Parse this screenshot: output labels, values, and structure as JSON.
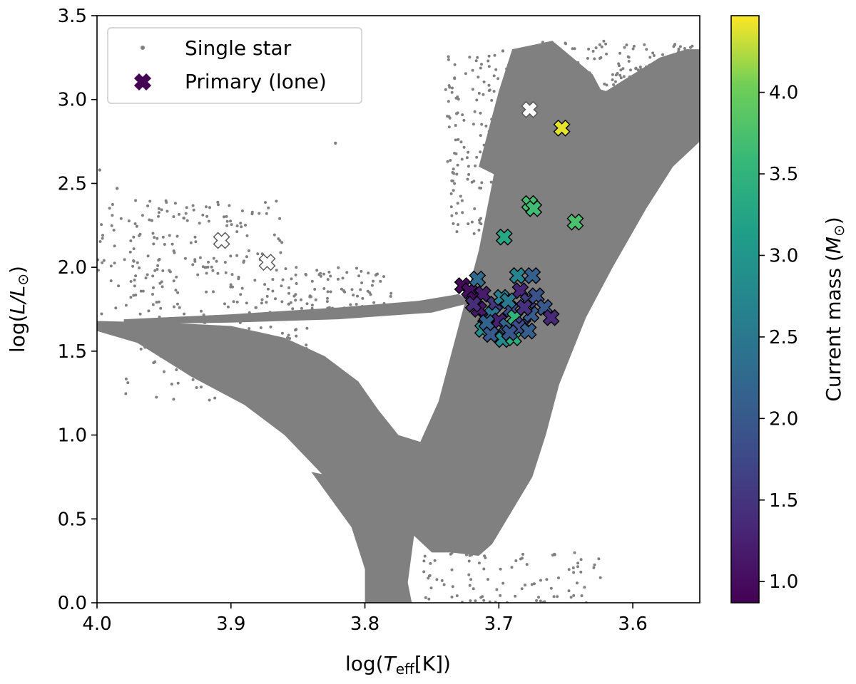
{
  "chart_data": {
    "type": "scatter",
    "title": "",
    "xlabel_prefix": "log(",
    "xlabel_var": "T",
    "xlabel_sub": "eff",
    "xlabel_suffix": "[K])",
    "ylabel_prefix": "log(",
    "ylabel_var": "L/L",
    "ylabel_sub": "⊙",
    "ylabel_suffix": ")",
    "xlim": [
      4.0,
      3.55
    ],
    "ylim": [
      0.0,
      3.5
    ],
    "x_ticks": [
      4.0,
      3.9,
      3.8,
      3.7,
      3.6
    ],
    "x_tick_labels": [
      "4.0",
      "3.9",
      "3.8",
      "3.7",
      "3.6"
    ],
    "y_ticks": [
      0.0,
      0.5,
      1.0,
      1.5,
      2.0,
      2.5,
      3.0,
      3.5
    ],
    "y_tick_labels": [
      "0.0",
      "0.5",
      "1.0",
      "1.5",
      "2.0",
      "2.5",
      "3.0",
      "3.5"
    ],
    "legend": {
      "position": "top-left",
      "entries": [
        "Single star",
        "Primary (lone)"
      ]
    },
    "colorbar": {
      "label_prefix": "Current mass (",
      "label_var": "M",
      "label_sub": "⊙",
      "label_suffix": ")",
      "range": [
        0.87,
        4.47
      ],
      "ticks": [
        1.0,
        1.5,
        2.0,
        2.5,
        3.0,
        3.5,
        4.0
      ],
      "tick_labels": [
        "1.0",
        "1.5",
        "2.0",
        "2.5",
        "3.0",
        "3.5",
        "4.0"
      ],
      "colormap": "viridis"
    },
    "colors": {
      "single_star": "#808080",
      "primary_edge": "#000000",
      "unfilled_marker": "#ffffff",
      "axes": "#000000"
    },
    "series": [
      {
        "name": "Single star",
        "marker": "dot",
        "density_regions": [
          {
            "region": "main-sequence",
            "x_range": [
              3.8,
              4.0
            ],
            "y_range": [
              0.0,
              1.6
            ]
          },
          {
            "region": "giant-branch",
            "x_range": [
              3.57,
              3.72
            ],
            "y_range": [
              0.0,
              3.3
            ]
          },
          {
            "region": "horizontal-branch",
            "x_range": [
              3.72,
              4.0
            ],
            "y_range": [
              1.6,
              1.9
            ]
          }
        ],
        "points": [
          {
            "x": 3.822,
            "y": 2.74
          },
          {
            "x": 3.697,
            "y": 3.29
          },
          {
            "x": 3.998,
            "y": 2.58
          },
          {
            "x": 3.985,
            "y": 2.47
          }
        ]
      },
      {
        "name": "Primary (lone)",
        "marker": "X",
        "points": [
          {
            "x": 3.677,
            "y": 2.94,
            "mass": null
          },
          {
            "x": 3.653,
            "y": 2.83,
            "mass": 4.4
          },
          {
            "x": 3.907,
            "y": 2.16,
            "mass": null
          },
          {
            "x": 3.873,
            "y": 2.03,
            "mass": null
          },
          {
            "x": 3.677,
            "y": 2.38,
            "mass": 3.7
          },
          {
            "x": 3.674,
            "y": 2.35,
            "mass": 3.65
          },
          {
            "x": 3.643,
            "y": 2.27,
            "mass": 3.75
          },
          {
            "x": 3.696,
            "y": 2.18,
            "mass": 3.3
          },
          {
            "x": 3.727,
            "y": 1.89,
            "mass": 0.95
          },
          {
            "x": 3.722,
            "y": 1.86,
            "mass": 1.05
          },
          {
            "x": 3.716,
            "y": 1.93,
            "mass": 2.3
          },
          {
            "x": 3.718,
            "y": 1.81,
            "mass": 1.0
          },
          {
            "x": 3.712,
            "y": 1.84,
            "mass": 1.2
          },
          {
            "x": 3.703,
            "y": 1.78,
            "mass": 1.5
          },
          {
            "x": 3.698,
            "y": 1.82,
            "mass": 2.6
          },
          {
            "x": 3.691,
            "y": 1.75,
            "mass": 1.8
          },
          {
            "x": 3.686,
            "y": 1.95,
            "mass": 2.7
          },
          {
            "x": 3.675,
            "y": 1.95,
            "mass": 2.1
          },
          {
            "x": 3.684,
            "y": 1.86,
            "mass": 1.3
          },
          {
            "x": 3.678,
            "y": 1.8,
            "mass": 1.6
          },
          {
            "x": 3.672,
            "y": 1.83,
            "mass": 1.9
          },
          {
            "x": 3.666,
            "y": 1.76,
            "mass": 2.0
          },
          {
            "x": 3.661,
            "y": 1.7,
            "mass": 1.35
          },
          {
            "x": 3.71,
            "y": 1.7,
            "mass": 1.1
          },
          {
            "x": 3.705,
            "y": 1.72,
            "mass": 2.4
          },
          {
            "x": 3.7,
            "y": 1.68,
            "mass": 1.25
          },
          {
            "x": 3.694,
            "y": 1.65,
            "mass": 2.2
          },
          {
            "x": 3.688,
            "y": 1.7,
            "mass": 3.5
          },
          {
            "x": 3.682,
            "y": 1.66,
            "mass": 1.7
          },
          {
            "x": 3.676,
            "y": 1.72,
            "mass": 2.05
          },
          {
            "x": 3.712,
            "y": 1.63,
            "mass": 2.9
          },
          {
            "x": 3.706,
            "y": 1.6,
            "mass": 2.0
          },
          {
            "x": 3.697,
            "y": 1.57,
            "mass": 2.8
          },
          {
            "x": 3.689,
            "y": 1.58,
            "mass": 3.4
          },
          {
            "x": 3.685,
            "y": 1.64,
            "mass": 1.85
          },
          {
            "x": 3.678,
            "y": 1.62,
            "mass": 2.1
          },
          {
            "x": 3.715,
            "y": 1.75,
            "mass": 1.15
          },
          {
            "x": 3.719,
            "y": 1.78,
            "mass": 1.4
          },
          {
            "x": 3.693,
            "y": 1.8,
            "mass": 2.5
          },
          {
            "x": 3.681,
            "y": 1.76,
            "mass": 1.45
          },
          {
            "x": 3.709,
            "y": 1.67,
            "mass": 2.15
          },
          {
            "x": 3.692,
            "y": 1.61,
            "mass": 1.95
          }
        ]
      }
    ]
  }
}
